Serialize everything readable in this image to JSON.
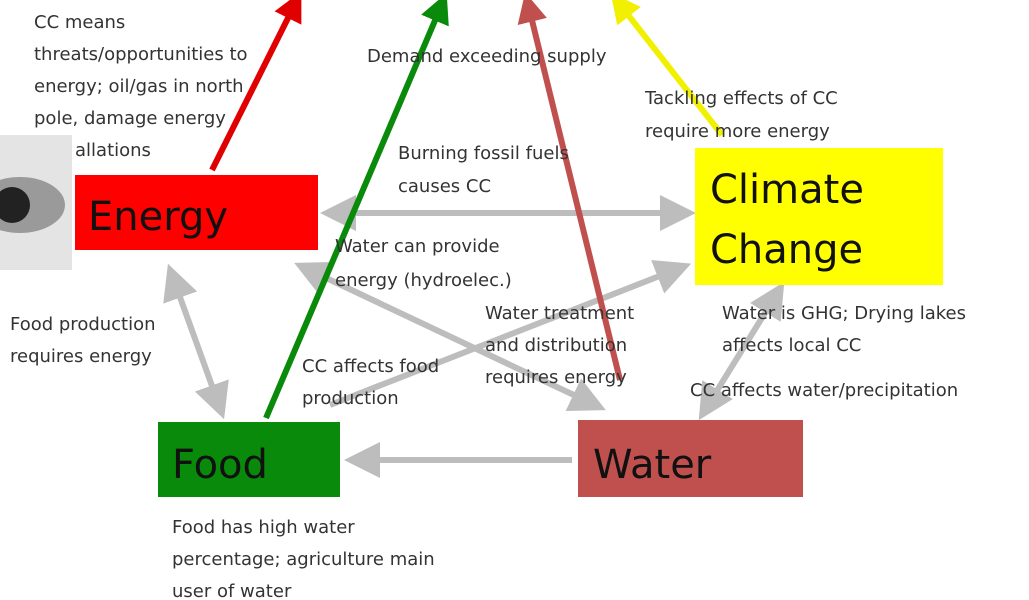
{
  "nodes": [
    {
      "label": [
        "Energy"
      ]
    },
    {
      "label": [
        "Climate",
        "Change"
      ]
    },
    {
      "label": [
        "Food"
      ]
    },
    {
      "label": [
        "Water"
      ]
    }
  ],
  "notes": [
    [
      "CC means",
      "threats/opportunities to",
      "energy; oil/gas in north",
      "pole, damage energy",
      "allations"
    ],
    [
      "Demand exceeding supply"
    ],
    [
      "Tackling effects of CC",
      "require more energy"
    ],
    [
      "Burning fossil fuels",
      "causes CC"
    ],
    [
      "Water can provide",
      "energy (hydroelec.)"
    ],
    [
      "Food production",
      "requires energy"
    ],
    [
      "Water treatment",
      "and distribution",
      "requires energy"
    ],
    [
      "CC affects food",
      "production"
    ],
    [
      "Water is GHG; Drying lakes",
      "affects local CC"
    ],
    [
      "CC affects water/precipitation"
    ],
    [
      "Food has high water",
      "percentage; agriculture main",
      "user of water"
    ]
  ]
}
